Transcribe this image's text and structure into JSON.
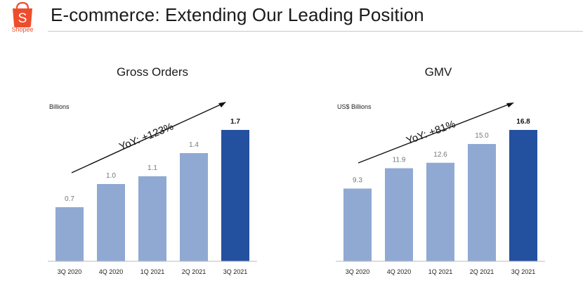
{
  "header": {
    "title": "E-commerce: Extending Our Leading Position",
    "logo_text": "Shopee",
    "logo_letter": "S"
  },
  "colors": {
    "bar_light": "#8fa9d3",
    "bar_highlight": "#2450a0",
    "brand": "#ee4d2d"
  },
  "chart_data": [
    {
      "type": "bar",
      "title": "Gross Orders",
      "unit_label": "Billions",
      "categories": [
        "3Q 2020",
        "4Q 2020",
        "1Q 2021",
        "2Q 2021",
        "3Q 2021"
      ],
      "values": [
        0.7,
        1.0,
        1.1,
        1.4,
        1.7
      ],
      "value_labels": [
        "0.7",
        "1.0",
        "1.1",
        "1.4",
        "1.7"
      ],
      "highlight_index": 4,
      "annotation": "YoY: +123%",
      "ylim": [
        0,
        1.7
      ],
      "grid": false
    },
    {
      "type": "bar",
      "title": "GMV",
      "unit_label": "US$ Billions",
      "categories": [
        "3Q 2020",
        "4Q 2020",
        "1Q 2021",
        "2Q 2021",
        "3Q 2021"
      ],
      "values": [
        9.3,
        11.9,
        12.6,
        15.0,
        16.8
      ],
      "value_labels": [
        "9.3",
        "11.9",
        "12.6",
        "15.0",
        "16.8"
      ],
      "highlight_index": 4,
      "annotation": "YoY: +81%",
      "ylim": [
        0,
        16.8
      ],
      "grid": false
    }
  ]
}
